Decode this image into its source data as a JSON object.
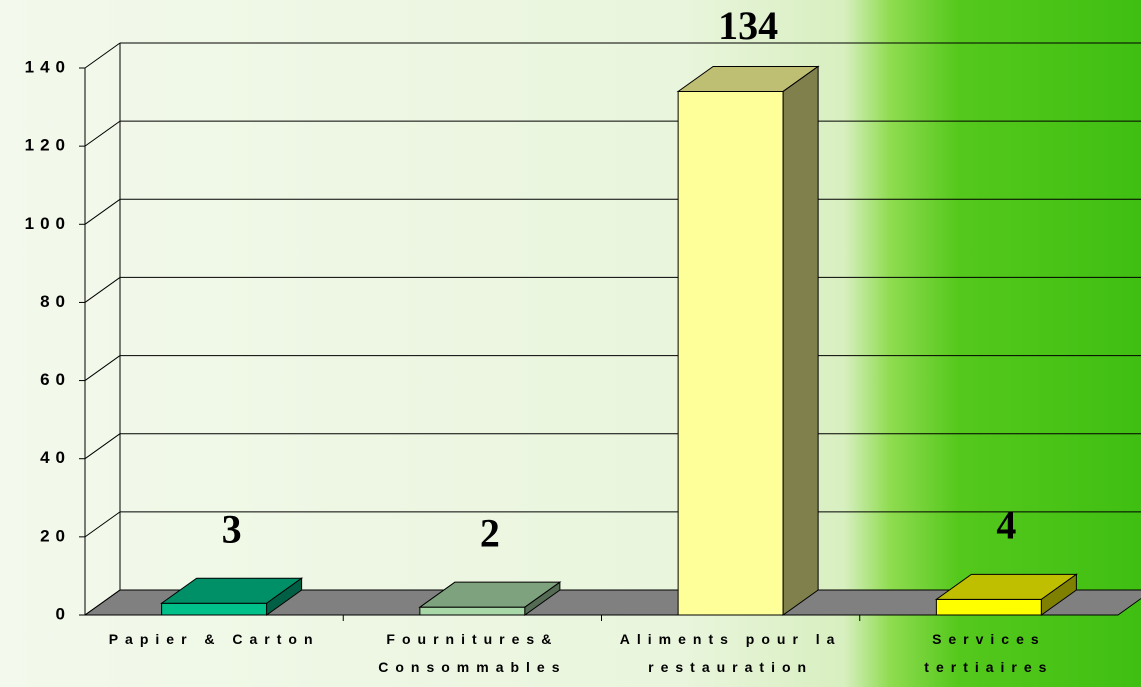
{
  "chart_data": {
    "type": "bar3d",
    "categories": [
      "Papier & Carton",
      "Fournitures& Consommables",
      "Aliments pour la restauration",
      "Services tertiaires"
    ],
    "values": [
      3,
      2,
      134,
      4
    ],
    "colors": [
      "#00c08a",
      "#a8d8a8",
      "#ffff99",
      "#ffff00"
    ],
    "ylim": [
      0,
      140
    ],
    "yticks": [
      0,
      20,
      40,
      60,
      80,
      100,
      120,
      140
    ],
    "grid": true
  }
}
